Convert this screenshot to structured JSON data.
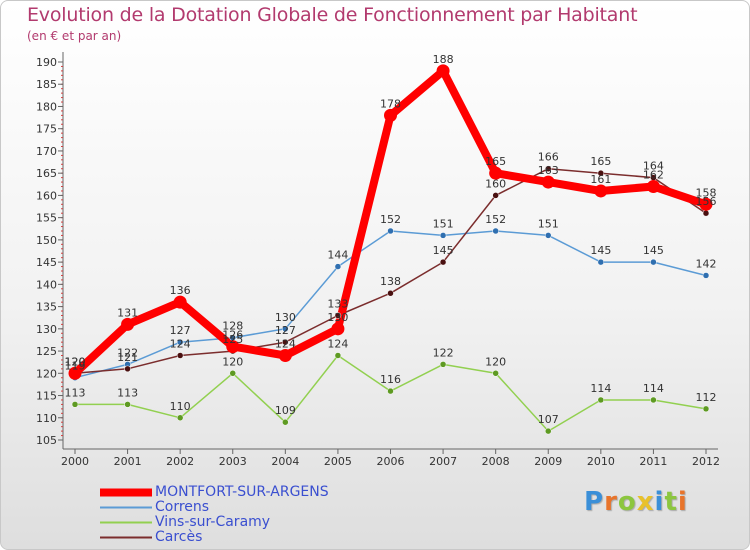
{
  "chart_data": {
    "type": "line",
    "title": "Evolution de la Dotation Globale de Fonctionnement par Habitant",
    "subtitle": "(en € et par an)",
    "x": [
      "2000",
      "2001",
      "2002",
      "2003",
      "2004",
      "2005",
      "2006",
      "2007",
      "2008",
      "2009",
      "2010",
      "2011",
      "2012"
    ],
    "ylim": [
      105,
      190
    ],
    "yticks": [
      105,
      110,
      115,
      120,
      125,
      130,
      135,
      140,
      145,
      150,
      155,
      160,
      165,
      170,
      175,
      180,
      185,
      190
    ],
    "grid": false,
    "legend_position": "bottom-left",
    "series": [
      {
        "name": "MONTFORT-SUR-ARGENS",
        "color": "#ff0000",
        "values": [
          120,
          131,
          136,
          126,
          124,
          130,
          178,
          188,
          165,
          163,
          161,
          162,
          158
        ]
      },
      {
        "name": "Correns",
        "color": "#5b9bd5",
        "values": [
          119,
          122,
          127,
          128,
          130,
          144,
          152,
          151,
          152,
          151,
          145,
          145,
          142
        ]
      },
      {
        "name": "Vins-sur-Caramy",
        "color": "#92d050",
        "values": [
          113,
          113,
          110,
          120,
          109,
          124,
          116,
          122,
          120,
          107,
          114,
          114,
          112
        ]
      },
      {
        "name": "Carcès",
        "color": "#7b2d2d",
        "values": [
          120,
          121,
          124,
          125,
          127,
          133,
          138,
          145,
          160,
          166,
          165,
          164,
          156
        ]
      }
    ]
  },
  "logo": {
    "text": "Proxiti",
    "letters": [
      "P",
      "r",
      "o",
      "x",
      "i",
      "t",
      "i"
    ],
    "colors": [
      "#3a8fd8",
      "#e8742b",
      "#8cc63f",
      "#e8c12b",
      "#3a8fd8",
      "#8cc63f",
      "#e8742b"
    ]
  }
}
